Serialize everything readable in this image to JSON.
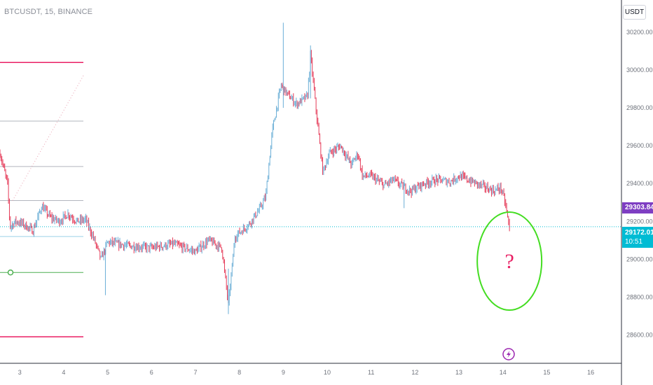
{
  "header": {
    "symbol_title": "BTCUSDT, 15, BINANCE"
  },
  "toolbar": {
    "currency_label": "USDT"
  },
  "chart_data": {
    "type": "candlestick",
    "instrument": "BTCUSDT",
    "interval": "15",
    "exchange": "BINANCE",
    "ylim": [
      28450,
      30370
    ],
    "xlim": [
      2.55,
      16.7
    ],
    "y_ticks": [
      "28600.00",
      "28800.00",
      "29000.00",
      "29200.00",
      "29400.00",
      "29600.00",
      "29800.00",
      "30000.00",
      "30200.00"
    ],
    "x_ticks": [
      "3",
      "4",
      "5",
      "6",
      "7",
      "8",
      "9",
      "10",
      "11",
      "12",
      "13",
      "14",
      "15",
      "16"
    ],
    "price_path": [
      [
        2.55,
        29560
      ],
      [
        2.72,
        29400
      ],
      [
        2.78,
        29170
      ],
      [
        2.9,
        29200
      ],
      [
        3.05,
        29190
      ],
      [
        3.3,
        29150
      ],
      [
        3.5,
        29280
      ],
      [
        3.7,
        29220
      ],
      [
        3.9,
        29200
      ],
      [
        4.1,
        29240
      ],
      [
        4.3,
        29200
      ],
      [
        4.5,
        29210
      ],
      [
        4.7,
        29100
      ],
      [
        4.85,
        29000
      ],
      [
        5.0,
        29090
      ],
      [
        5.5,
        29070
      ],
      [
        6.0,
        29060
      ],
      [
        6.5,
        29080
      ],
      [
        7.0,
        29040
      ],
      [
        7.3,
        29100
      ],
      [
        7.6,
        29060
      ],
      [
        7.75,
        28760
      ],
      [
        7.9,
        29120
      ],
      [
        8.2,
        29180
      ],
      [
        8.45,
        29260
      ],
      [
        8.6,
        29330
      ],
      [
        8.75,
        29680
      ],
      [
        8.95,
        29920
      ],
      [
        9.1,
        29870
      ],
      [
        9.3,
        29820
      ],
      [
        9.55,
        29860
      ],
      [
        9.62,
        30080
      ],
      [
        9.75,
        29780
      ],
      [
        9.9,
        29460
      ],
      [
        10.05,
        29560
      ],
      [
        10.3,
        29600
      ],
      [
        10.55,
        29500
      ],
      [
        10.7,
        29560
      ],
      [
        10.8,
        29440
      ],
      [
        11.0,
        29440
      ],
      [
        11.3,
        29390
      ],
      [
        11.5,
        29420
      ],
      [
        11.75,
        29380
      ],
      [
        11.9,
        29360
      ],
      [
        12.2,
        29400
      ],
      [
        12.5,
        29420
      ],
      [
        12.8,
        29410
      ],
      [
        13.0,
        29440
      ],
      [
        13.2,
        29420
      ],
      [
        13.4,
        29400
      ],
      [
        13.6,
        29380
      ],
      [
        13.8,
        29360
      ],
      [
        13.95,
        29380
      ],
      [
        14.05,
        29300
      ],
      [
        14.15,
        29160
      ]
    ],
    "last_price": "29303.84",
    "current_price": "29172.01",
    "countdown": "10:51",
    "horizontal_levels": [
      {
        "price": 30040,
        "color": "#e91e63"
      },
      {
        "price": 29730,
        "color": "#b2b5be"
      },
      {
        "price": 29490,
        "color": "#b2b5be"
      },
      {
        "price": 29310,
        "color": "#b2b5be"
      },
      {
        "price": 29120,
        "color": "#9ad2e8"
      },
      {
        "price": 28930,
        "color": "#4caf50"
      },
      {
        "price": 28590,
        "color": "#e91e63"
      }
    ],
    "annotation": {
      "text": "?",
      "center_price": 28990,
      "center_time": 14.15,
      "color": "#e91e63",
      "ring_color": "#44dd22"
    },
    "colors": {
      "up": "#6aaed6",
      "down": "#e53957",
      "price_line": "#00bcd4",
      "badge_last": "#7e3ec2",
      "badge_current": "#00bcd4"
    }
  },
  "icons": {
    "event_marker": "lightning-icon"
  }
}
